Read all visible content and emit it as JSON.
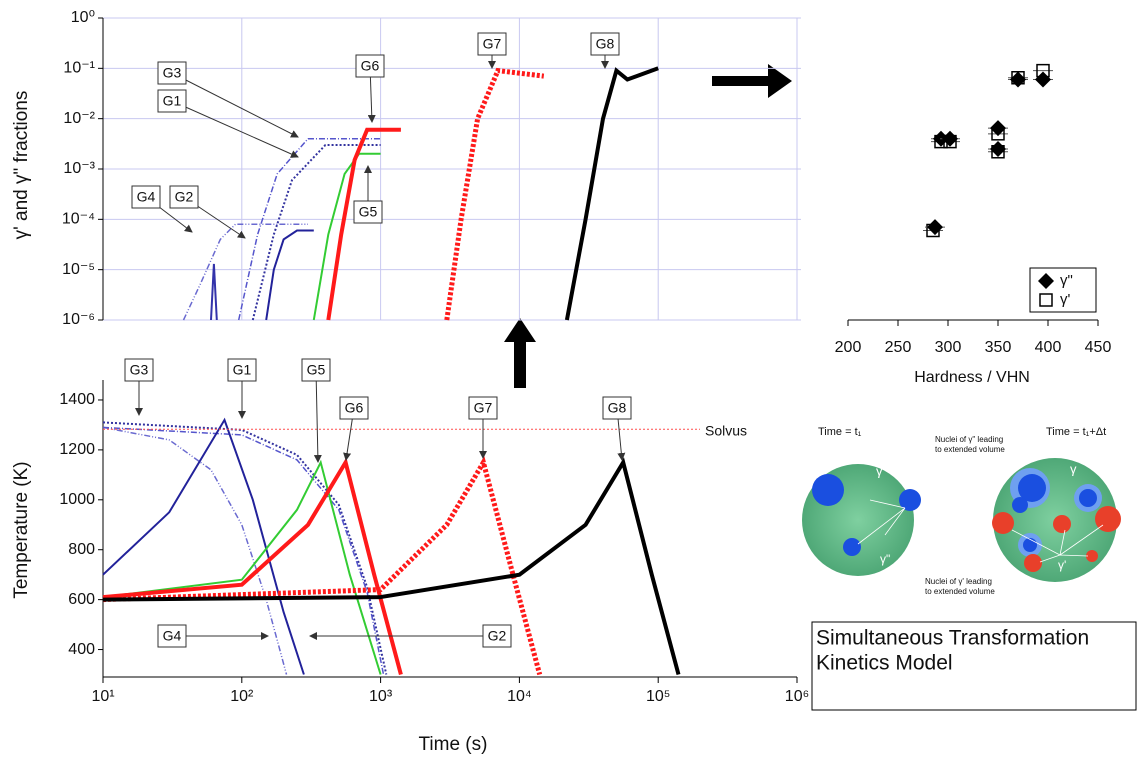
{
  "chart_data": [
    {
      "type": "line",
      "ylabel": "γ' and γ\" fractions",
      "xscale": "log",
      "yscale": "log",
      "xlim": [
        10,
        1000000
      ],
      "ylim": [
        1e-06,
        1
      ],
      "grid": true,
      "yticks": [
        {
          "value": 1,
          "label": "10⁰"
        },
        {
          "value": 0.1,
          "label": "10⁻¹"
        },
        {
          "value": 0.01,
          "label": "10⁻²"
        },
        {
          "value": 0.001,
          "label": "10⁻³"
        },
        {
          "value": 0.0001,
          "label": "10⁻⁴"
        },
        {
          "value": 1e-05,
          "label": "10⁻⁵"
        },
        {
          "value": 1e-06,
          "label": "10⁻⁶"
        }
      ],
      "series": [
        {
          "color": "#6a6ad0",
          "style": "dashdotdot",
          "x": [
            38,
            50,
            70,
            90,
            300
          ],
          "values": [
            1e-06,
            5e-06,
            4e-05,
            8e-05,
            8e-05
          ]
        },
        {
          "color": "#3333aa",
          "style": "solid",
          "x": [
            60,
            63,
            66
          ],
          "values": [
            1e-06,
            1.3e-05,
            1e-06
          ]
        },
        {
          "color": "#22229a",
          "style": "solid",
          "x": [
            150,
            170,
            200,
            250,
            330
          ],
          "values": [
            1e-06,
            1e-05,
            4e-05,
            6e-05,
            6e-05
          ]
        },
        {
          "color": "#5555cc",
          "style": "dashdot",
          "x": [
            95,
            130,
            180,
            300,
            1000
          ],
          "values": [
            1e-06,
            5e-05,
            0.0008,
            0.004,
            0.004
          ]
        },
        {
          "color": "#33339f",
          "style": "dotted",
          "x": [
            120,
            170,
            230,
            400,
            1000
          ],
          "values": [
            1e-06,
            5e-05,
            0.0006,
            0.003,
            0.003
          ]
        },
        {
          "color": "#33cc33",
          "style": "solid",
          "x": [
            330,
            420,
            550,
            700,
            1000
          ],
          "values": [
            1e-06,
            5e-05,
            0.0008,
            0.002,
            0.002
          ]
        },
        {
          "color": "#ff1a1a",
          "style": "thick",
          "x": [
            420,
            520,
            650,
            800,
            1400
          ],
          "values": [
            1e-06,
            5e-05,
            0.0015,
            0.006,
            0.006
          ]
        },
        {
          "color": "#ff1a1a",
          "style": "thickdotted",
          "x": [
            3000,
            3800,
            5000,
            7000,
            15000
          ],
          "values": [
            1e-06,
            0.0001,
            0.01,
            0.09,
            0.07
          ]
        },
        {
          "color": "#000000",
          "style": "thick",
          "x": [
            22000,
            30000,
            40000,
            50000,
            60000,
            100000
          ],
          "values": [
            1e-06,
            0.0001,
            0.01,
            0.09,
            0.06,
            0.1
          ]
        }
      ],
      "annotations": [
        "G3",
        "G1",
        "G4",
        "G2",
        "G6",
        "G5",
        "G7",
        "G8"
      ]
    },
    {
      "type": "line",
      "xlabel": "Time (s)",
      "ylabel": "Temperature (K)",
      "xscale": "log",
      "xlim": [
        10,
        1000000
      ],
      "ylim": [
        290,
        1480
      ],
      "grid": false,
      "xticks": [
        {
          "value": 10,
          "label": "10¹"
        },
        {
          "value": 100,
          "label": "10²"
        },
        {
          "value": 1000,
          "label": "10³"
        },
        {
          "value": 10000,
          "label": "10⁴"
        },
        {
          "value": 100000,
          "label": "10⁵"
        },
        {
          "value": 1000000,
          "label": "10⁶"
        }
      ],
      "yticks": [
        400,
        600,
        800,
        1000,
        1200,
        1400
      ],
      "series": [
        {
          "color": "#6a6ad0",
          "style": "dashdotdot",
          "x": [
            10,
            30,
            60,
            100,
            150,
            210
          ],
          "values": [
            1290,
            1240,
            1120,
            900,
            600,
            300
          ]
        },
        {
          "color": "#33339f",
          "style": "dotted",
          "x": [
            10,
            100,
            250,
            500,
            800,
            1100
          ],
          "values": [
            1310,
            1280,
            1180,
            980,
            650,
            300
          ]
        },
        {
          "color": "#5555cc",
          "style": "dashdot",
          "x": [
            10,
            100,
            250,
            500,
            800,
            1050
          ],
          "values": [
            1290,
            1260,
            1160,
            960,
            630,
            300
          ]
        },
        {
          "color": "#22229a",
          "style": "solid",
          "x": [
            10,
            30,
            75,
            120,
            200,
            280
          ],
          "values": [
            700,
            950,
            1320,
            1000,
            550,
            300
          ]
        },
        {
          "color": "#33cc33",
          "style": "solid",
          "x": [
            10,
            100,
            250,
            370,
            600,
            1000
          ],
          "values": [
            610,
            680,
            960,
            1150,
            700,
            300
          ]
        },
        {
          "color": "#ff1a1a",
          "style": "thick",
          "x": [
            10,
            100,
            300,
            560,
            900,
            1400
          ],
          "values": [
            610,
            660,
            900,
            1150,
            700,
            300
          ]
        },
        {
          "color": "#ff4d4d",
          "style": "thindotted",
          "x": [
            10,
            200000
          ],
          "values": [
            1283,
            1283
          ]
        },
        {
          "color": "#ff1a1a",
          "style": "thickdotted",
          "x": [
            10,
            1000,
            3000,
            5500,
            9000,
            14000
          ],
          "values": [
            600,
            640,
            900,
            1150,
            700,
            300
          ]
        },
        {
          "color": "#000000",
          "style": "thick",
          "x": [
            10,
            1000,
            10000,
            30000,
            56000,
            90000,
            140000
          ],
          "values": [
            600,
            610,
            700,
            900,
            1150,
            700,
            300
          ]
        }
      ],
      "annotations": [
        "G3",
        "G1",
        "G5",
        "G6",
        "G7",
        "G8",
        "G4",
        "G2",
        "Solvus"
      ]
    },
    {
      "type": "scatter",
      "xlabel": "Hardness / VHN",
      "yscale": "log",
      "xlim": [
        200,
        450
      ],
      "ylim": [
        1e-06,
        1
      ],
      "xticks": [
        200,
        250,
        300,
        350,
        400,
        450
      ],
      "legend": "lower right",
      "series": [
        {
          "name": "γ\"",
          "marker": "diamond",
          "color": "#000000",
          "x": [
            287,
            293,
            302,
            350,
            350,
            370,
            395
          ],
          "values": [
            7e-05,
            0.004,
            0.004,
            0.0065,
            0.0025,
            0.06,
            0.06
          ]
        },
        {
          "name": "γ'",
          "marker": "square",
          "color": "#000000",
          "x": [
            285,
            293,
            302,
            350,
            350,
            370,
            395
          ],
          "values": [
            6e-05,
            0.0035,
            0.0035,
            0.005,
            0.0022,
            0.065,
            0.09
          ]
        }
      ]
    }
  ],
  "diagram": {
    "time_left": "Time = t₁",
    "time_right": "Time = t₁+Δt",
    "gamma_left": "γ",
    "gamma_right": "γ",
    "gamma2": "γ\"",
    "gamma1": "γ'",
    "note_top": [
      "Nuclei of γ\" leading",
      "to extended volume"
    ],
    "note_bottom": [
      "Nuclei of γ' leading",
      "to extended volume"
    ],
    "caption": [
      "Simultaneous Transformation",
      "Kinetics Model"
    ]
  }
}
